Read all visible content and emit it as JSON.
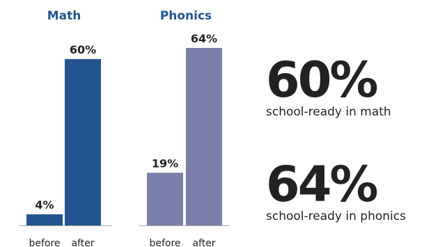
{
  "chart_data": {
    "type": "bar",
    "ylim": [
      0,
      70
    ],
    "groups": [
      {
        "title": "Math",
        "title_color": "#23548f",
        "categories": [
          "before",
          "after"
        ],
        "values": [
          4,
          60
        ],
        "labels": [
          "4%",
          "60%"
        ],
        "bar_color": "#23548f"
      },
      {
        "title": "Phonics",
        "title_color": "#23548f",
        "categories": [
          "before",
          "after"
        ],
        "values": [
          19,
          64
        ],
        "labels": [
          "19%",
          "64%"
        ],
        "bar_color": "#7a7fa9"
      }
    ]
  },
  "stats": [
    {
      "value": "60%",
      "caption": "school-ready in math"
    },
    {
      "value": "64%",
      "caption": "school-ready in phonics"
    }
  ],
  "colors": {
    "text": "#222222",
    "axis": "#aaaaaa"
  }
}
